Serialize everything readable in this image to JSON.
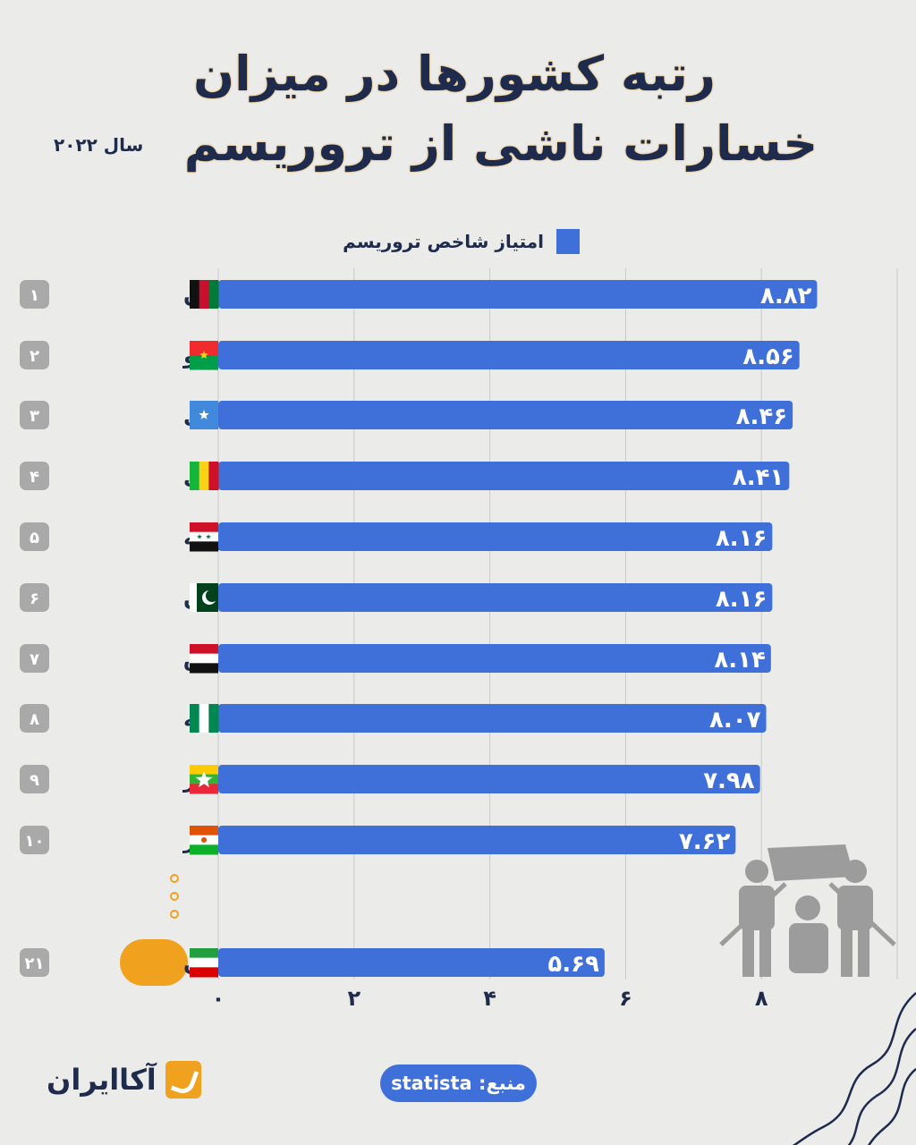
{
  "title_line1": "رتبه کشورها در میزان",
  "title_line2": "خسارات ناشی از تروریسم",
  "year_label": "سال ۲۰۲۲",
  "legend_label": "امتیاز شاخص تروریسم",
  "source": "منبع: statista",
  "logo_text": "آکاایران",
  "colors": {
    "bar": "#3f6fd8",
    "title": "#1f2b4d",
    "highlight": "#f0a21e",
    "rank_badge": "#a9a9a9"
  },
  "chart_data": {
    "type": "bar",
    "orientation": "horizontal",
    "legend": "امتیاز شاخص تروریسم",
    "xlim": [
      0,
      10
    ],
    "grid": true,
    "x_ticks": [
      0,
      2,
      4,
      6,
      8
    ],
    "x_tick_labels": [
      "۰",
      "۲",
      "۴",
      "۶",
      "۸"
    ],
    "rows": [
      {
        "rank": "۱",
        "country": "افغانستان",
        "flag": "afghanistan",
        "value": 8.82,
        "label": "۸.۸۲"
      },
      {
        "rank": "۲",
        "country": "بورکینافاسو",
        "flag": "burkina-faso",
        "value": 8.56,
        "label": "۸.۵۶"
      },
      {
        "rank": "۳",
        "country": "سومالی",
        "flag": "somalia",
        "value": 8.46,
        "label": "۸.۴۶"
      },
      {
        "rank": "۴",
        "country": "مالی",
        "flag": "mali",
        "value": 8.41,
        "label": "۸.۴۱"
      },
      {
        "rank": "۵",
        "country": "سوریه",
        "flag": "syria",
        "value": 8.16,
        "label": "۸.۱۶"
      },
      {
        "rank": "۶",
        "country": "پاکستان",
        "flag": "pakistan",
        "value": 8.16,
        "label": "۸.۱۶"
      },
      {
        "rank": "۷",
        "country": "عراق",
        "flag": "iraq",
        "value": 8.14,
        "label": "۸.۱۴"
      },
      {
        "rank": "۸",
        "country": "نیجریه",
        "flag": "nigeria",
        "value": 8.07,
        "label": "۸.۰۷"
      },
      {
        "rank": "۹",
        "country": "میانمار",
        "flag": "myanmar",
        "value": 7.98,
        "label": "۷.۹۸"
      },
      {
        "rank": "۱۰",
        "country": "نیجر",
        "flag": "niger",
        "value": 7.62,
        "label": "۷.۶۲"
      },
      {
        "rank": "۲۱",
        "country": "ایران",
        "flag": "iran",
        "value": 5.69,
        "label": "۵.۶۹",
        "highlight": true
      }
    ]
  }
}
